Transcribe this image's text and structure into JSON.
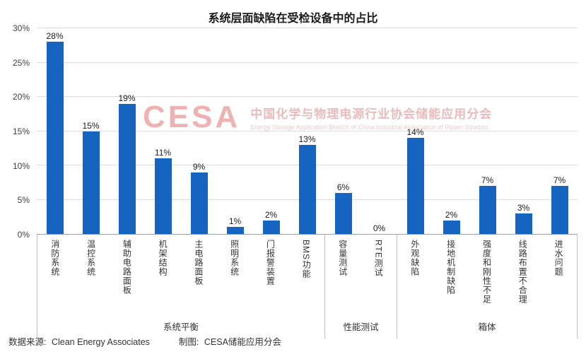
{
  "title": "系统层面缺陷在受检设备中的占比",
  "watermark": {
    "logo": "CESA",
    "cn": "中国化学与物理电源行业协会储能应用分会",
    "en": "Energy Storage Application Branch of China Industrial Association of Power Sources"
  },
  "footer": {
    "source_label": "数据来源:",
    "source_value": "Clean Energy Associates",
    "credit_label": "制图:",
    "credit_value": "CESA储能应用分会"
  },
  "chart_data": {
    "type": "bar",
    "title": "系统层面缺陷在受检设备中的占比",
    "categories": [
      "消防系统",
      "温控系统",
      "辅助电路面板",
      "机架结构",
      "主电路面板",
      "照明系统",
      "门报警装置",
      "BMS功能",
      "容量测试",
      "RTE测试",
      "外观缺陷",
      "接地机制缺陷",
      "强度和刚性不足",
      "线路布置不合理",
      "进水问题"
    ],
    "values": [
      28,
      15,
      19,
      11,
      9,
      1,
      2,
      13,
      6,
      0,
      14,
      2,
      7,
      3,
      7
    ],
    "value_labels": [
      "28%",
      "15%",
      "19%",
      "11%",
      "9%",
      "1%",
      "2%",
      "13%",
      "6%",
      "0%",
      "14%",
      "2%",
      "7%",
      "3%",
      "7%"
    ],
    "groups": [
      {
        "label": "系统平衡",
        "span": 8
      },
      {
        "label": "性能测试",
        "span": 2
      },
      {
        "label": "箱体",
        "span": 5
      }
    ],
    "y_ticks": [
      0,
      5,
      10,
      15,
      20,
      25,
      30
    ],
    "y_tick_labels": [
      "0%",
      "5%",
      "10%",
      "15%",
      "20%",
      "25%",
      "30%"
    ],
    "ylim": [
      0,
      30
    ],
    "xlabel": "",
    "ylabel": "",
    "bar_color": "#1565c0",
    "grid": "horizontal",
    "legend": "none"
  }
}
